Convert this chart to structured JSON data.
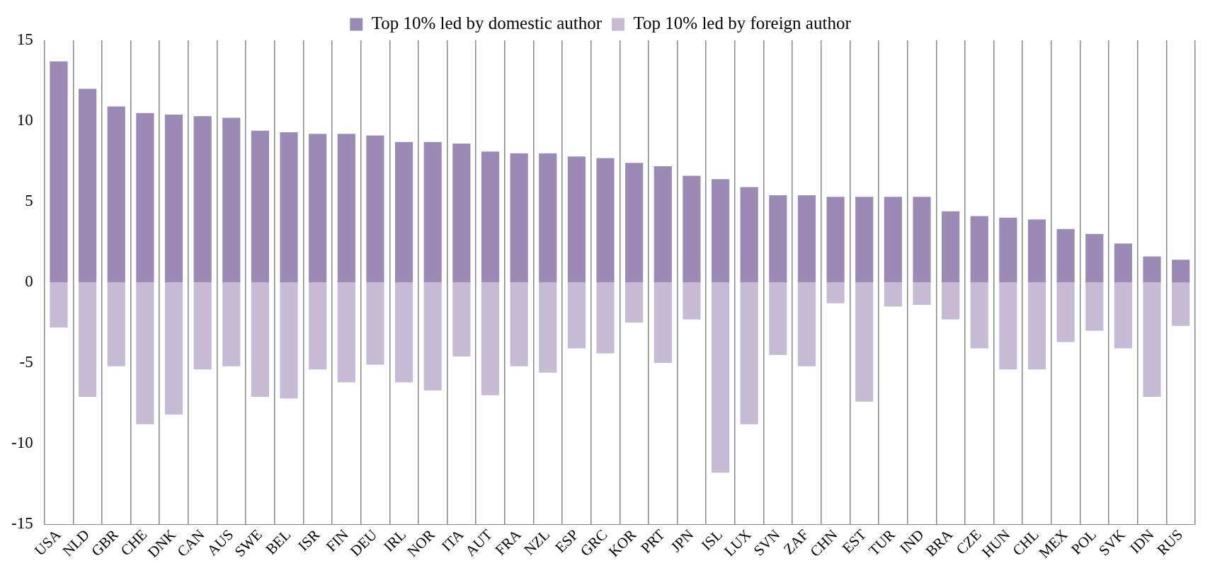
{
  "chart_data": {
    "type": "bar",
    "stacked": true,
    "legend": "top",
    "grid": "x",
    "categories": [
      "USA",
      "NLD",
      "GBR",
      "CHE",
      "DNK",
      "CAN",
      "AUS",
      "SWE",
      "BEL",
      "ISR",
      "FIN",
      "DEU",
      "IRL",
      "NOR",
      "ITA",
      "AUT",
      "FRA",
      "NZL",
      "ESP",
      "GRC",
      "KOR",
      "PRT",
      "JPN",
      "ISL",
      "LUX",
      "SVN",
      "ZAF",
      "CHN",
      "EST",
      "TUR",
      "IND",
      "BRA",
      "CZE",
      "HUN",
      "CHL",
      "MEX",
      "POL",
      "SVK",
      "IDN",
      "RUS"
    ],
    "ylim": [
      -15,
      15
    ],
    "yticks": [
      -15,
      -10,
      -5,
      0,
      5,
      10,
      15
    ],
    "series": [
      {
        "name": "Top 10% led by domestic author",
        "color": "#9b8ab4",
        "values": [
          13.7,
          12.0,
          10.9,
          10.5,
          10.4,
          10.3,
          10.2,
          9.4,
          9.3,
          9.2,
          9.2,
          9.1,
          8.7,
          8.7,
          8.6,
          8.1,
          8.0,
          8.0,
          7.8,
          7.7,
          7.4,
          7.2,
          6.6,
          6.4,
          5.9,
          5.4,
          5.4,
          5.3,
          5.3,
          5.3,
          5.3,
          4.4,
          4.1,
          4.0,
          3.9,
          3.3,
          3.0,
          2.4,
          1.6,
          1.4
        ]
      },
      {
        "name": "Top 10% led by foreign author",
        "color": "#c5bbd6",
        "values": [
          -2.8,
          -7.1,
          -5.2,
          -8.8,
          -8.2,
          -5.4,
          -5.2,
          -7.1,
          -7.2,
          -5.4,
          -6.2,
          -5.1,
          -6.2,
          -6.7,
          -4.6,
          -7.0,
          -5.2,
          -5.6,
          -4.1,
          -4.4,
          -2.5,
          -5.0,
          -2.3,
          -11.8,
          -8.8,
          -4.5,
          -5.2,
          -1.3,
          -7.4,
          -1.5,
          -1.4,
          -2.3,
          -4.1,
          -5.4,
          -5.4,
          -3.7,
          -3.0,
          -4.1,
          -7.1,
          -2.7
        ]
      }
    ]
  }
}
